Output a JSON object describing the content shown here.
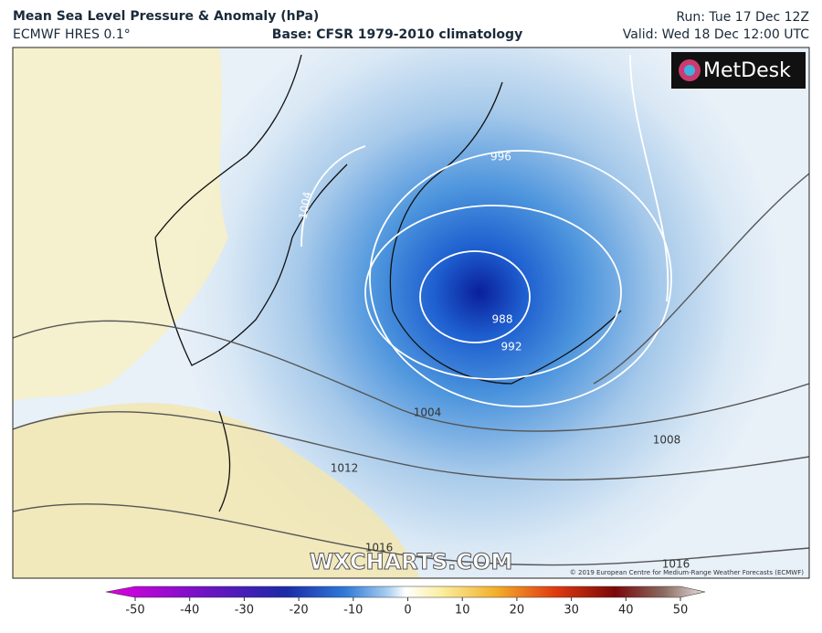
{
  "header": {
    "title": "Mean Sea Level Pressure & Anomaly (hPa)",
    "model": "ECMWF HRES 0.1°",
    "base": "Base: CFSR 1979-2010 climatology",
    "run": "Run: Tue 17 Dec 12Z",
    "valid": "Valid: Wed 18 Dec 12:00 UTC"
  },
  "map": {
    "logo": "MetDesk",
    "watermark": "WXCHARTS.COM",
    "copyright": "© 2019 European Centre for Medium-Range Weather Forecasts (ECMWF)",
    "contour_labels": [
      "996",
      "1004",
      "988",
      "992",
      "1004",
      "1008",
      "1012",
      "1016",
      "1016"
    ]
  },
  "colorbar": {
    "range": [
      -50,
      50
    ],
    "ticks": [
      -50,
      -40,
      -30,
      -20,
      -10,
      0,
      10,
      20,
      30,
      40,
      50
    ]
  }
}
